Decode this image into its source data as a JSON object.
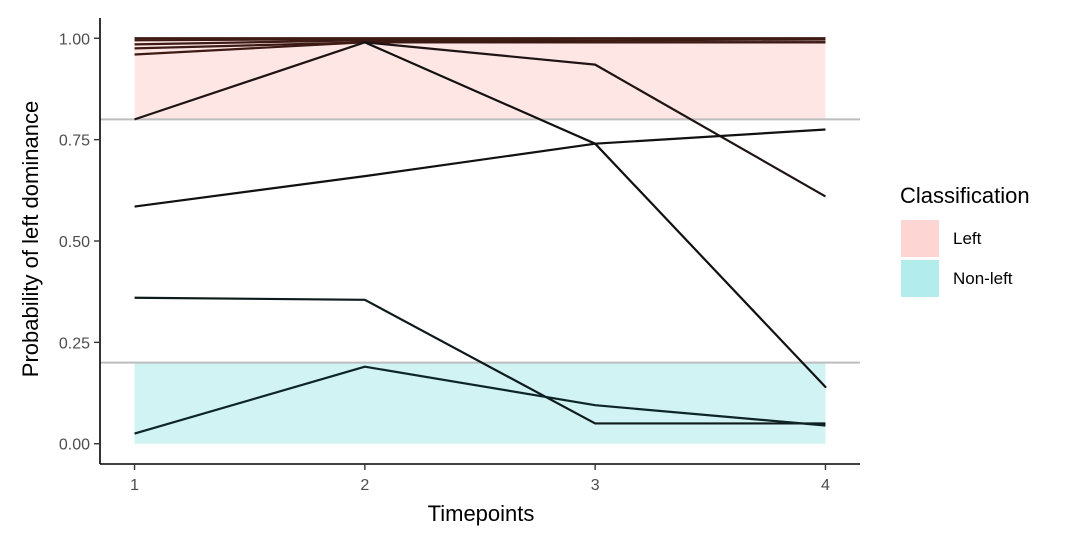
{
  "chart_data": {
    "type": "line",
    "xlabel": "Timepoints",
    "ylabel": "Probability of left dominance",
    "x": [
      1,
      2,
      3,
      4
    ],
    "xlim": [
      0.85,
      4.15
    ],
    "ylim": [
      -0.05,
      1.05
    ],
    "xticks": [
      "1",
      "2",
      "3",
      "4"
    ],
    "yticks": [
      "0.00",
      "0.25",
      "0.50",
      "0.75",
      "1.00"
    ],
    "grid": false,
    "bands": [
      {
        "label": "Left",
        "from": 0.8,
        "to": 1.0,
        "color": "#F8766D"
      },
      {
        "label": "Non-left",
        "from": 0.0,
        "to": 0.2,
        "color": "#00BFC4"
      }
    ],
    "thresholds": [
      0.2,
      0.8
    ],
    "threshold_color": "#bdbdbd",
    "legend": {
      "title": "Classification",
      "placement": "right",
      "items": [
        {
          "label": "Left",
          "color": "#F8766D"
        },
        {
          "label": "Non-left",
          "color": "#00BFC4"
        }
      ]
    },
    "series": [
      {
        "values": [
          1.0,
          1.0,
          1.0,
          1.0
        ],
        "color": "#3d1a14"
      },
      {
        "values": [
          0.995,
          0.998,
          0.995,
          0.997
        ],
        "color": "#3d1a14"
      },
      {
        "values": [
          0.985,
          0.995,
          0.99,
          0.99
        ],
        "color": "#3d1a14"
      },
      {
        "values": [
          0.975,
          0.99,
          0.99,
          0.99
        ],
        "color": "#3d1a14"
      },
      {
        "values": [
          0.96,
          0.99,
          0.99,
          0.99
        ],
        "color": "#3d1a14"
      },
      {
        "values": [
          0.8,
          0.99,
          0.935,
          0.61
        ],
        "color": "#1f1414"
      },
      {
        "values": [
          0.585,
          0.66,
          0.74,
          0.775
        ],
        "color": "#111111"
      },
      {
        "values": [
          0.36,
          0.355,
          0.05,
          0.05
        ],
        "color": "#0e1a1c"
      },
      {
        "values": [
          0.025,
          0.19,
          0.095,
          0.045
        ],
        "color": "#0e2426"
      }
    ],
    "extra_segments": [
      {
        "from": [
          2,
          0.99
        ],
        "to": [
          3,
          0.74
        ],
        "color": "#111111"
      },
      {
        "from": [
          3,
          0.74
        ],
        "to": [
          4,
          0.14
        ],
        "color": "#111111"
      }
    ]
  }
}
